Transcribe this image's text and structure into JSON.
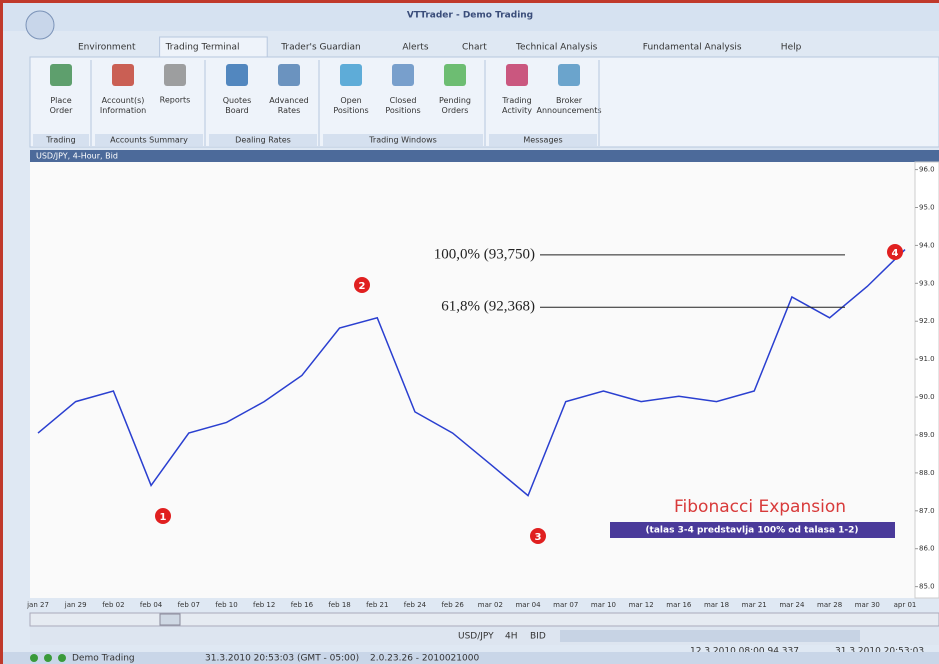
{
  "window": {
    "title": "VTTrader - Demo Trading"
  },
  "tabs": [
    "Environment",
    "Trading Terminal",
    "Trader's Guardian",
    "Alerts",
    "Chart",
    "Technical Analysis",
    "Fundamental Analysis",
    "Help"
  ],
  "ribbon": [
    {
      "group": "Trading",
      "items": [
        "Place Order"
      ]
    },
    {
      "group": "Accounts Summary",
      "items": [
        "Account(s) Information",
        "Reports"
      ]
    },
    {
      "group": "Dealing Rates",
      "items": [
        "Quotes Board",
        "Advanced Rates"
      ]
    },
    {
      "group": "Trading Windows",
      "items": [
        "Open Positions",
        "Closed Positions",
        "Pending Orders"
      ]
    },
    {
      "group": "Messages",
      "items": [
        "Trading Activity",
        "Broker Announcements"
      ]
    }
  ],
  "chart_window": {
    "title": "USD/JPY, 4-Hour, Bid"
  },
  "chart_data": {
    "type": "line",
    "categories": [
      "jan 27",
      "jan 29",
      "feb 02",
      "feb 04",
      "feb 07",
      "feb 10",
      "feb 12",
      "feb 16",
      "feb 18",
      "feb 21",
      "feb 24",
      "feb 26",
      "mar 02",
      "mar 04",
      "mar 07",
      "mar 10",
      "mar 12",
      "mar 16",
      "mar 18",
      "mar 21",
      "mar 24",
      "mar 28",
      "mar 30",
      "apr 01"
    ],
    "values": [
      89.05,
      89.88,
      90.16,
      87.67,
      89.05,
      89.33,
      89.88,
      90.57,
      91.82,
      92.09,
      89.61,
      89.05,
      88.23,
      87.4,
      89.88,
      90.16,
      89.88,
      90.02,
      89.88,
      90.16,
      92.64,
      92.09,
      92.92,
      93.89
    ],
    "color": "#2a3fd0",
    "ylim": [
      84.7,
      96.2
    ],
    "yticks": [
      {
        "value": 85,
        "label": "85.0"
      },
      {
        "value": 86,
        "label": "86.0"
      },
      {
        "value": 87,
        "label": "87.0"
      },
      {
        "value": 88,
        "label": "88.0"
      },
      {
        "value": 89,
        "label": "89.0"
      },
      {
        "value": 90,
        "label": "90.0"
      },
      {
        "value": 91,
        "label": "91.0"
      },
      {
        "value": 92,
        "label": "92.0"
      },
      {
        "value": 93,
        "label": "93.0"
      },
      {
        "value": 94,
        "label": "94.0"
      },
      {
        "value": 95,
        "label": "95.0"
      },
      {
        "value": 96,
        "label": "96.0"
      }
    ],
    "grid": false,
    "fib_levels": [
      {
        "label": "100,0% (93,750)",
        "value": 93.75
      },
      {
        "label": "61,8% (92,368)",
        "value": 92.368
      }
    ],
    "wave_markers": [
      "1",
      "2",
      "3",
      "4"
    ],
    "annotation": {
      "title": "Fibonacci Expansion",
      "note": "(talas 3-4 predstavlja 100% od talasa 1-2)"
    }
  },
  "toolbar": {
    "symbol": "USD/JPY",
    "period": "4H",
    "price_type": "BID",
    "cursor": "12.3.2010 08:00  94.337",
    "time": "31.3.2010 20:53:03"
  },
  "status": {
    "account": "Demo Trading",
    "time": "31.3.2010 20:53:03 (GMT - 05:00)",
    "version": "2.0.23.26 - 2010021000"
  }
}
